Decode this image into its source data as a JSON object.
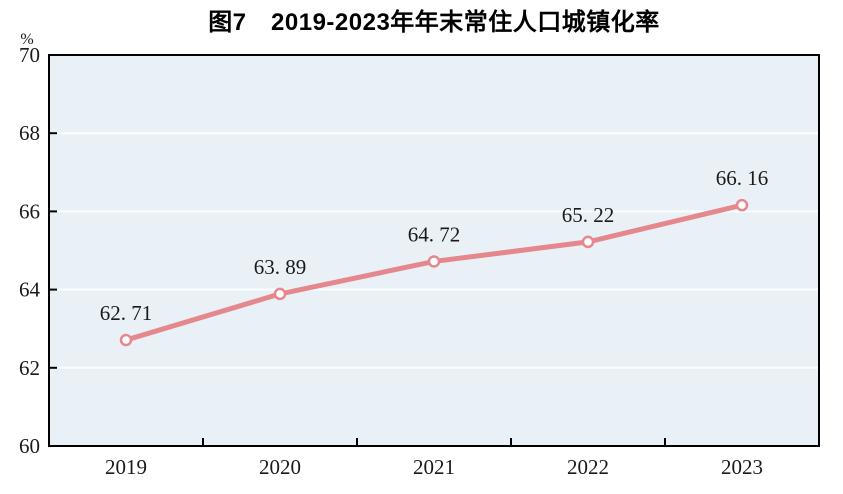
{
  "figure": {
    "title": "图7　2019-2023年年末常住人口城镇化率"
  },
  "chart_data": {
    "type": "line",
    "title": "图7　2019-2023年年末常住人口城镇化率",
    "categories": [
      "2019",
      "2020",
      "2021",
      "2022",
      "2023"
    ],
    "series": [
      {
        "name": "年末常住人口城镇化率",
        "values": [
          62.71,
          63.89,
          64.72,
          65.22,
          66.16
        ]
      }
    ],
    "point_labels": [
      "62. 71",
      "63. 89",
      "64. 72",
      "65. 22",
      "66. 16"
    ],
    "xlabel": "",
    "ylabel": "%",
    "ylim": [
      60,
      70
    ],
    "yticks": [
      60,
      62,
      64,
      66,
      68,
      70
    ],
    "grid": true,
    "legend_position": "none",
    "colors": {
      "line": "#e5888e",
      "marker_fill": "#ffffff",
      "plot_bg": "#e9f1f6",
      "gridline": "#fbfdfe",
      "axis": "#000000",
      "text": "#1a1a1a",
      "page_bg": "#ffffff"
    }
  }
}
